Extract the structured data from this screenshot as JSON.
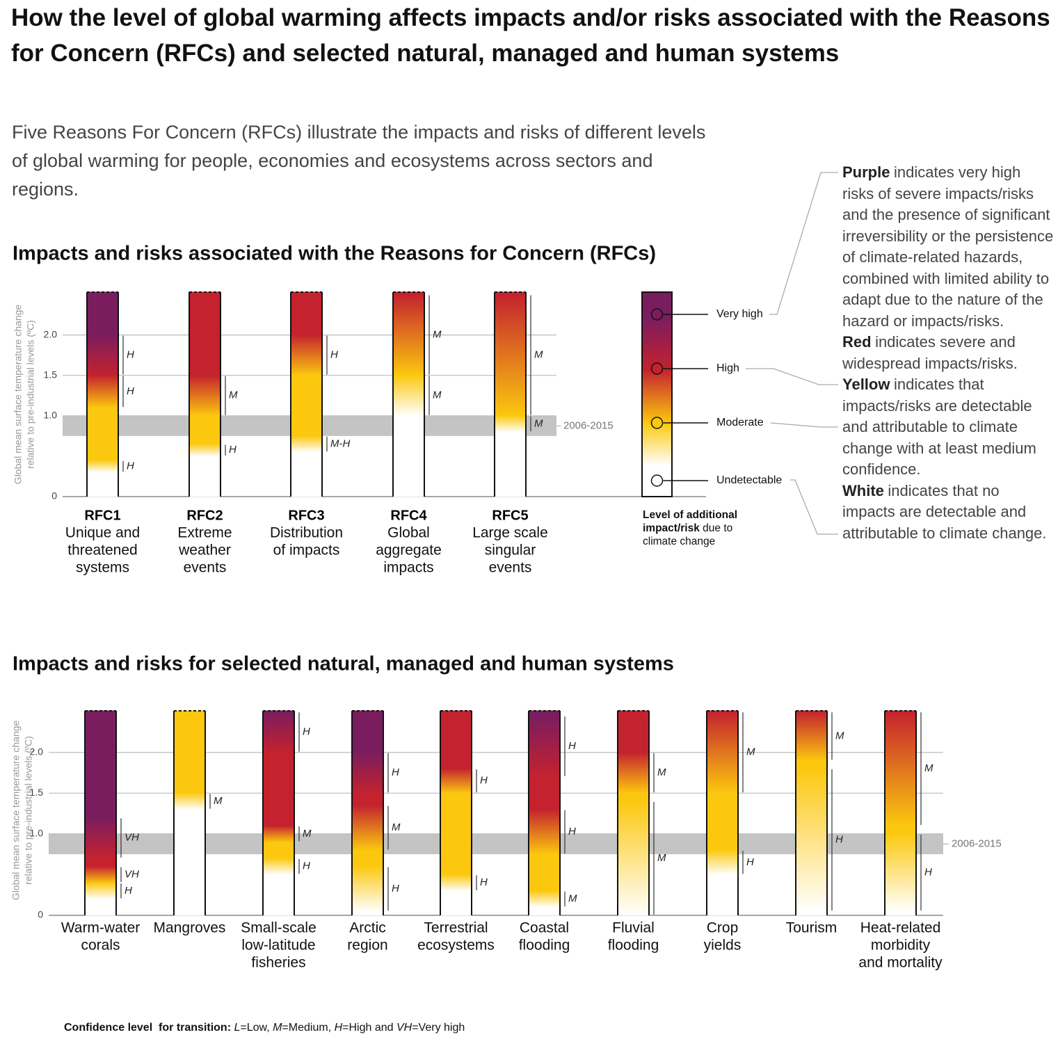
{
  "title": "How the level of global warming affects impacts and/or risks associated with the Reasons for Concern (RFCs) and selected natural, managed and human systems",
  "subtitle": "Five Reasons For Concern (RFCs) illustrate the impacts and risks of different levels of global warming for people, economies and ecosystems across sectors and regions.",
  "chart_data": [
    {
      "type": "ember",
      "title": "Impacts and risks associated with the Reasons for Concern (RFCs)",
      "ylabel": [
        "Global mean surface temperature change",
        "relative to pre-industrial levels (ºC)"
      ],
      "ylim": [
        0,
        2.53
      ],
      "yticks": [
        0,
        {
          "value": 1,
          "label": "1.0"
        },
        {
          "value": 1.5,
          "label": "1.5"
        },
        {
          "value": 2,
          "label": "2.0"
        }
      ],
      "grid": true,
      "band": {
        "label": "2006-2015",
        "range": [
          0.75,
          1.0
        ],
        "color": "#c4c4c4"
      },
      "categories": [
        {
          "code": "RFC1",
          "label": [
            "Unique and",
            "threatened",
            "systems"
          ],
          "transitions": [
            {
              "from": "#ffffff",
              "to": "#fcc80f",
              "start": 0.3,
              "end": 0.45,
              "confidence": "H"
            },
            {
              "from": "#fcc80f",
              "to": "#c4222e",
              "start": 1.1,
              "end": 1.5,
              "confidence": "H"
            },
            {
              "from": "#c4222e",
              "to": "#7a1d5f",
              "start": 1.5,
              "end": 2.0,
              "confidence": "H"
            }
          ]
        },
        {
          "code": "RFC2",
          "label": [
            "Extreme",
            "weather",
            "events"
          ],
          "transitions": [
            {
              "from": "#ffffff",
              "to": "#fcc80f",
              "start": 0.5,
              "end": 0.65,
              "confidence": "H"
            },
            {
              "from": "#fcc80f",
              "to": "#c4222e",
              "start": 1.0,
              "end": 1.5,
              "confidence": "M"
            }
          ]
        },
        {
          "code": "RFC3",
          "label": [
            "Distribution",
            "of impacts"
          ],
          "transitions": [
            {
              "from": "#ffffff",
              "to": "#fcc80f",
              "start": 0.55,
              "end": 0.75,
              "confidence": "M-H"
            },
            {
              "from": "#fcc80f",
              "to": "#c4222e",
              "start": 1.5,
              "end": 2.0,
              "confidence": "H"
            }
          ]
        },
        {
          "code": "RFC4",
          "label": [
            "Global",
            "aggregate",
            "impacts"
          ],
          "transitions": [
            {
              "from": "#ffffff",
              "to": "#fcc80f",
              "start": 1.0,
              "end": 1.5,
              "confidence": "M"
            },
            {
              "from": "#fcc80f",
              "to": "#c4222e",
              "start": 1.5,
              "end": 2.5,
              "confidence": "M"
            }
          ]
        },
        {
          "code": "RFC5",
          "label": [
            "Large scale",
            "singular",
            "events"
          ],
          "transitions": [
            {
              "from": "#ffffff",
              "to": "#fcc80f",
              "start": 0.8,
              "end": 1.0,
              "confidence": "M"
            },
            {
              "from": "#fcc80f",
              "to": "#c4222e",
              "start": 1.0,
              "end": 2.5,
              "confidence": "M"
            }
          ]
        }
      ],
      "legend": {
        "title": "Level of additional impact/risk",
        "title_rest": "due to climate change",
        "levels": [
          {
            "name": "Very high",
            "color": "#7a1d5f",
            "term": "Purple",
            "text": "indicates very high risks of severe impacts/risks and the presence of significant irreversibility or the persistence of climate-related hazards, combined with limited ability to adapt due to the nature of the hazard or impacts/risks."
          },
          {
            "name": "High",
            "color": "#c4222e",
            "term": "Red",
            "text": "indicates severe and widespread impacts/risks."
          },
          {
            "name": "Moderate",
            "color": "#fcc80f",
            "term": "Yellow",
            "text": "indicates that impacts/risks are detectable and attributable to climate change with at least medium confidence."
          },
          {
            "name": "Undetectable",
            "color": "#ffffff",
            "term": "White",
            "text": "indicates that no impacts are detectable and attributable to climate change."
          }
        ]
      }
    },
    {
      "type": "ember",
      "title": "Impacts and risks for selected natural, managed and human systems",
      "ylabel": [
        "Global mean surface temperature change",
        "relative to pre-industrial levels (ºC)"
      ],
      "ylim": [
        0,
        2.51
      ],
      "yticks": [
        0,
        {
          "value": 1,
          "label": "1.0"
        },
        {
          "value": 1.5,
          "label": "1.5"
        },
        {
          "value": 2,
          "label": "2.0"
        }
      ],
      "grid": true,
      "band": {
        "label": "2006-2015",
        "range": [
          0.75,
          1.0
        ],
        "color": "#c4c4c4"
      },
      "categories": [
        {
          "label": [
            "Warm-water",
            "corals"
          ],
          "transitions": [
            {
              "from": "#ffffff",
              "to": "#fcc80f",
              "start": 0.2,
              "end": 0.4,
              "confidence": "H"
            },
            {
              "from": "#fcc80f",
              "to": "#c4222e",
              "start": 0.4,
              "end": 0.6,
              "confidence": "VH"
            },
            {
              "from": "#c4222e",
              "to": "#7a1d5f",
              "start": 0.7,
              "end": 1.2,
              "confidence": "VH"
            }
          ]
        },
        {
          "label": [
            "Mangroves"
          ],
          "transitions": [
            {
              "from": "#ffffff",
              "to": "#fcc80f",
              "start": 1.3,
              "end": 1.5,
              "confidence": "M"
            }
          ]
        },
        {
          "label": [
            "Small-scale",
            "low-latitude",
            "fisheries"
          ],
          "transitions": [
            {
              "from": "#ffffff",
              "to": "#fcc80f",
              "start": 0.5,
              "end": 0.7,
              "confidence": "H"
            },
            {
              "from": "#fcc80f",
              "to": "#c4222e",
              "start": 0.9,
              "end": 1.1,
              "confidence": "M"
            },
            {
              "from": "#c4222e",
              "to": "#7a1d5f",
              "start": 2.0,
              "end": 2.5,
              "confidence": "H"
            }
          ]
        },
        {
          "label": [
            "Arctic",
            "region"
          ],
          "transitions": [
            {
              "from": "#ffffff",
              "to": "#fcc80f",
              "start": 0.05,
              "end": 0.6,
              "confidence": "H"
            },
            {
              "from": "#fcc80f",
              "to": "#c4222e",
              "start": 0.8,
              "end": 1.35,
              "confidence": "M"
            },
            {
              "from": "#c4222e",
              "to": "#7a1d5f",
              "start": 1.5,
              "end": 2.0,
              "confidence": "H"
            }
          ]
        },
        {
          "label": [
            "Terrestrial",
            "ecosystems"
          ],
          "transitions": [
            {
              "from": "#ffffff",
              "to": "#fcc80f",
              "start": 0.3,
              "end": 0.5,
              "confidence": "H"
            },
            {
              "from": "#fcc80f",
              "to": "#c4222e",
              "start": 1.5,
              "end": 1.8,
              "confidence": "H"
            }
          ]
        },
        {
          "label": [
            "Coastal",
            "flooding"
          ],
          "transitions": [
            {
              "from": "#ffffff",
              "to": "#fcc80f",
              "start": 0.1,
              "end": 0.3,
              "confidence": "M"
            },
            {
              "from": "#fcc80f",
              "to": "#c4222e",
              "start": 0.75,
              "end": 1.3,
              "confidence": "H"
            },
            {
              "from": "#c4222e",
              "to": "#7a1d5f",
              "start": 1.7,
              "end": 2.45,
              "confidence": "H"
            }
          ]
        },
        {
          "label": [
            "Fluvial",
            "flooding"
          ],
          "transitions": [
            {
              "from": "#ffffff",
              "to": "#fcc80f",
              "start": 0.0,
              "end": 1.4,
              "confidence": "M"
            },
            {
              "from": "#fcc80f",
              "to": "#c4222e",
              "start": 1.5,
              "end": 2.0,
              "confidence": "M"
            }
          ]
        },
        {
          "label": [
            "Crop",
            "yields"
          ],
          "transitions": [
            {
              "from": "#ffffff",
              "to": "#fcc80f",
              "start": 0.5,
              "end": 0.8,
              "confidence": "H"
            },
            {
              "from": "#fcc80f",
              "to": "#c4222e",
              "start": 1.5,
              "end": 2.5,
              "confidence": "M"
            }
          ]
        },
        {
          "label": [
            "Tourism"
          ],
          "transitions": [
            {
              "from": "#ffffff",
              "to": "#fcc80f",
              "start": 0.05,
              "end": 1.8,
              "confidence": "H"
            },
            {
              "from": "#fcc80f",
              "to": "#c4222e",
              "start": 1.9,
              "end": 2.5,
              "confidence": "M"
            }
          ]
        },
        {
          "label": [
            "Heat-related",
            "morbidity",
            "and mortality"
          ],
          "transitions": [
            {
              "from": "#ffffff",
              "to": "#fcc80f",
              "start": 0.05,
              "end": 1.0,
              "confidence": "H"
            },
            {
              "from": "#fcc80f",
              "to": "#c4222e",
              "start": 1.1,
              "end": 2.5,
              "confidence": "M"
            }
          ]
        }
      ]
    }
  ],
  "footnote": [
    {
      "text": "Confidence level  for transition:",
      "bold": true
    },
    {
      "text": " "
    },
    {
      "text": "L",
      "italic": true
    },
    {
      "text": "=Low, "
    },
    {
      "text": "M",
      "italic": true
    },
    {
      "text": "=Medium, "
    },
    {
      "text": "H",
      "italic": true
    },
    {
      "text": "=High and "
    },
    {
      "text": "VH",
      "italic": true
    },
    {
      "text": "=Very high"
    }
  ]
}
